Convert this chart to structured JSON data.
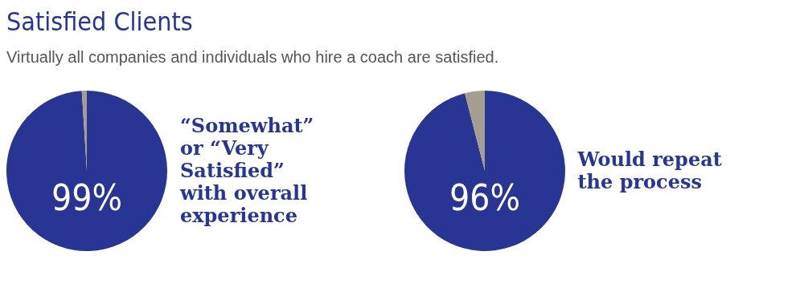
{
  "chart_data": [
    {
      "type": "pie",
      "title": "Satisfied Clients",
      "subtitle": "Virtually all companies and individuals who hire a coach are satisfied.",
      "categories": [
        "“Somewhat” or “Very Satisfied” with overall experience",
        null
      ],
      "values": [
        99,
        1
      ],
      "colors": [
        "#283593",
        "#a39e8f"
      ],
      "value_labels": [
        "99%",
        null
      ]
    },
    {
      "type": "pie",
      "categories": [
        "Would repeat the process",
        null
      ],
      "values": [
        96,
        4
      ],
      "colors": [
        "#283593",
        "#a39e8f"
      ],
      "value_labels": [
        "96%",
        null
      ]
    }
  ]
}
